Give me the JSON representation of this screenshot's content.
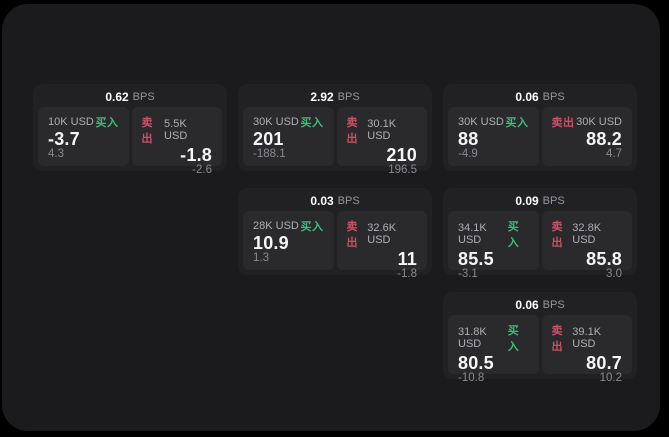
{
  "labels": {
    "bps_unit": "BPS",
    "buy": "买入",
    "sell": "卖出"
  },
  "colors": {
    "buy": "#3dbd7a",
    "sell": "#cc5066",
    "panel_bg": "#1b1b1d",
    "card_bg": "#212123",
    "subpanel_bg": "#2a2a2c"
  },
  "cards": [
    {
      "bps": "0.62",
      "buy": {
        "amount": "10K USD",
        "price": "-3.7",
        "sub": "4.3"
      },
      "sell": {
        "amount": "5.5K USD",
        "price": "-1.8",
        "sub": "-2.6"
      }
    },
    {
      "bps": "2.92",
      "buy": {
        "amount": "30K USD",
        "price": "201",
        "sub": "-188.1"
      },
      "sell": {
        "amount": "30.1K USD",
        "price": "210",
        "sub": "196.5"
      }
    },
    {
      "bps": "0.06",
      "buy": {
        "amount": "30K USD",
        "price": "88",
        "sub": "-4.9"
      },
      "sell": {
        "amount": "30K USD",
        "price": "88.2",
        "sub": "4.7"
      }
    },
    {
      "bps": "0.03",
      "buy": {
        "amount": "28K USD",
        "price": "10.9",
        "sub": "1.3"
      },
      "sell": {
        "amount": "32.6K USD",
        "price": "11",
        "sub": "-1.8"
      }
    },
    {
      "bps": "0.09",
      "buy": {
        "amount": "34.1K USD",
        "price": "85.5",
        "sub": "-3.1"
      },
      "sell": {
        "amount": "32.8K USD",
        "price": "85.8",
        "sub": "3.0"
      }
    },
    {
      "bps": "0.06",
      "buy": {
        "amount": "31.8K USD",
        "price": "80.5",
        "sub": "-10.8"
      },
      "sell": {
        "amount": "39.1K USD",
        "price": "80.7",
        "sub": "10.2"
      }
    }
  ]
}
